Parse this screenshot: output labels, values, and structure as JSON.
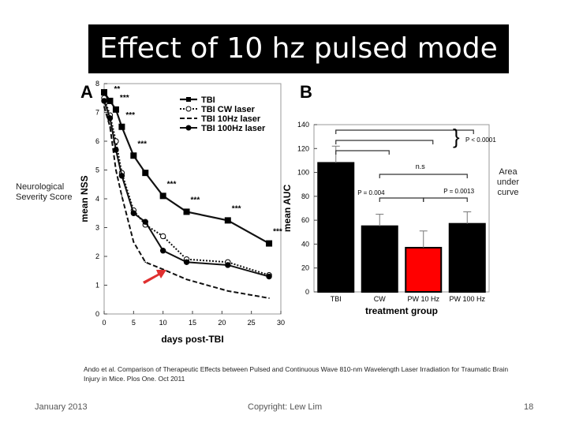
{
  "slide": {
    "title": "Effect of 10 hz pulsed mode",
    "left_label": "Neurological Severity Score",
    "right_label": "Area under curve",
    "caption": "Ando et al. Comparison of Therapeutic Effects between Pulsed and Continuous Wave 810-nm Wavelength Laser Irradiation for Traumatic Brain Injury in Mice. Plos One. Oct 2011",
    "footer_date": "January 2013",
    "footer_center": "Copyright: Lew Lim",
    "footer_page": "18"
  },
  "colors": {
    "bar_black": "#000000",
    "bar_highlight": "#ff0000",
    "arrow": "#e03030"
  },
  "chart_data": [
    {
      "panel_label": "A",
      "type": "line",
      "xlabel": "days post-TBI",
      "ylabel": "mean NSS",
      "xlim": [
        0,
        30
      ],
      "ylim": [
        0,
        8
      ],
      "xticks": [
        0,
        5,
        10,
        15,
        20,
        25,
        30
      ],
      "yticks": [
        0,
        1,
        2,
        3,
        4,
        5,
        6,
        7,
        8
      ],
      "series": [
        {
          "name": "TBI",
          "style": "solid-square",
          "x": [
            0,
            1,
            2,
            3,
            5,
            7,
            10,
            14,
            21,
            28
          ],
          "y": [
            7.7,
            7.4,
            7.1,
            6.5,
            5.5,
            4.9,
            4.1,
            3.55,
            3.25,
            2.45
          ]
        },
        {
          "name": "TBI CW laser",
          "style": "dotted-hollow",
          "x": [
            0,
            1,
            2,
            3,
            5,
            7,
            10,
            14,
            21,
            28
          ],
          "y": [
            7.5,
            6.9,
            6.0,
            4.9,
            3.6,
            3.1,
            2.7,
            1.9,
            1.8,
            1.35
          ]
        },
        {
          "name": "TBI 10Hz laser",
          "style": "dashed-hollow",
          "x": [
            0,
            1,
            2,
            3,
            5,
            7,
            10,
            14,
            21,
            28
          ],
          "y": [
            7.2,
            6.5,
            5.0,
            4.1,
            2.5,
            1.8,
            1.55,
            1.2,
            0.8,
            0.55
          ]
        },
        {
          "name": "TBI 100Hz laser",
          "style": "solid-circle",
          "x": [
            0,
            1,
            2,
            3,
            5,
            7,
            10,
            14,
            21,
            28
          ],
          "y": [
            7.4,
            6.8,
            5.7,
            4.8,
            3.5,
            3.2,
            2.2,
            1.8,
            1.7,
            1.3
          ]
        }
      ],
      "significance": [
        {
          "x": 1,
          "label": "**"
        },
        {
          "x": 2,
          "label": "***"
        },
        {
          "x": 3,
          "label": "***"
        },
        {
          "x": 5,
          "label": "***"
        },
        {
          "x": 10,
          "label": "***"
        },
        {
          "x": 14,
          "label": "***"
        },
        {
          "x": 21,
          "label": "***"
        },
        {
          "x": 28,
          "label": "***"
        }
      ],
      "legend_position": "top-right"
    },
    {
      "panel_label": "B",
      "type": "bar",
      "xlabel": "treatment group",
      "ylabel": "mean AUC",
      "ylim": [
        0,
        140
      ],
      "yticks": [
        0,
        20,
        40,
        60,
        80,
        100,
        120,
        140
      ],
      "categories": [
        "TBI",
        "CW",
        "PW 10 Hz",
        "PW 100 Hz"
      ],
      "values": [
        108,
        55,
        37,
        57
      ],
      "errors": [
        14,
        10,
        14,
        10
      ],
      "annotations": {
        "p_overall": "P < 0.0001",
        "ns": "n.s",
        "p_cw": "P = 0.004",
        "p_100": "P = 0.0013"
      }
    }
  ]
}
